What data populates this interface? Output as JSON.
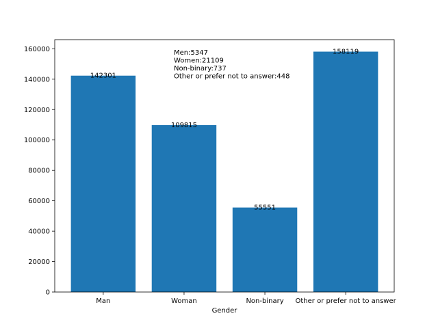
{
  "chart_data": {
    "type": "bar",
    "title": "",
    "xlabel": "Gender",
    "ylabel": "",
    "categories": [
      "Man",
      "Woman",
      "Non-binary",
      "Other or prefer not to answer"
    ],
    "values": [
      142301,
      109815,
      55551,
      158119
    ],
    "data_labels": [
      "142301",
      "109815",
      "55551",
      "158119"
    ],
    "ylim": [
      0,
      166000
    ],
    "yticks": [
      0,
      20000,
      40000,
      60000,
      80000,
      100000,
      120000,
      140000,
      160000
    ],
    "ytick_labels": [
      "0",
      "20000",
      "40000",
      "60000",
      "80000",
      "100000",
      "120000",
      "140000",
      "160000"
    ],
    "bar_color": "#1f77b4",
    "grid": false,
    "annotation_lines": [
      "Men:5347",
      "Women:21109",
      "Non-binary:737",
      "Other or prefer not to answer:448"
    ]
  }
}
